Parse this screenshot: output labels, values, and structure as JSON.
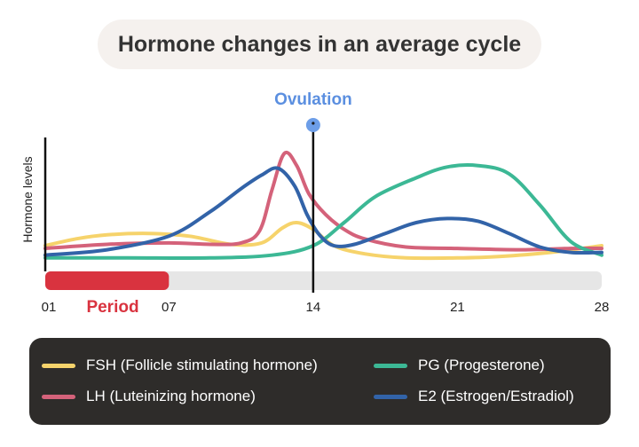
{
  "chart_data": {
    "type": "line",
    "title": "Hormone changes in an average cycle",
    "ylabel": "Hormone levels",
    "xlabel": "",
    "x_ticks": [
      "01",
      "07",
      "14",
      "21",
      "28"
    ],
    "xlim": [
      1,
      28
    ],
    "ylim": [
      0,
      1
    ],
    "grid": false,
    "legend_position": "bottom",
    "annotations": {
      "ovulation": {
        "label": "Ovulation",
        "day": 14
      },
      "period": {
        "label": "Period",
        "start_day": 1,
        "end_day": 7
      }
    },
    "series": [
      {
        "name": "FSH (Follicle stimulating hormone)",
        "color": "#F6D36B",
        "x": [
          1,
          2.5,
          4,
          6,
          8,
          10,
          11.5,
          12.5,
          13.2,
          14,
          15,
          16.5,
          18.5,
          21,
          23,
          25.5,
          28
        ],
        "y": [
          0.17,
          0.22,
          0.25,
          0.26,
          0.24,
          0.18,
          0.19,
          0.3,
          0.34,
          0.29,
          0.17,
          0.11,
          0.08,
          0.08,
          0.09,
          0.12,
          0.17
        ]
      },
      {
        "name": "LH (Luteinizing hormone)",
        "color": "#D4627A",
        "x": [
          1,
          4,
          7,
          9,
          10.5,
          11.4,
          12,
          12.6,
          13.2,
          13.8,
          14.6,
          15.5,
          16.5,
          18.5,
          21,
          24,
          26.5,
          28
        ],
        "y": [
          0.15,
          0.18,
          0.19,
          0.18,
          0.19,
          0.28,
          0.58,
          0.85,
          0.76,
          0.55,
          0.4,
          0.29,
          0.22,
          0.16,
          0.15,
          0.14,
          0.15,
          0.15
        ]
      },
      {
        "name": "PG (Progesterone)",
        "color": "#3CB895",
        "x": [
          1,
          5,
          9,
          12,
          14,
          15.5,
          17,
          19,
          20.5,
          22,
          23.5,
          25,
          26.5,
          28
        ],
        "y": [
          0.08,
          0.08,
          0.08,
          0.1,
          0.17,
          0.34,
          0.53,
          0.67,
          0.75,
          0.76,
          0.7,
          0.47,
          0.2,
          0.1
        ]
      },
      {
        "name": "E2 (Estrogen/Estradiol)",
        "color": "#3263A8",
        "x": [
          1,
          4,
          7,
          9,
          10.5,
          11.5,
          12.3,
          13.1,
          13.7,
          14.3,
          15,
          16,
          17.5,
          19,
          20.5,
          22,
          23.5,
          25,
          26.5,
          28
        ],
        "y": [
          0.1,
          0.14,
          0.24,
          0.42,
          0.59,
          0.69,
          0.74,
          0.61,
          0.4,
          0.25,
          0.17,
          0.18,
          0.26,
          0.34,
          0.37,
          0.35,
          0.26,
          0.16,
          0.12,
          0.12
        ]
      }
    ]
  }
}
